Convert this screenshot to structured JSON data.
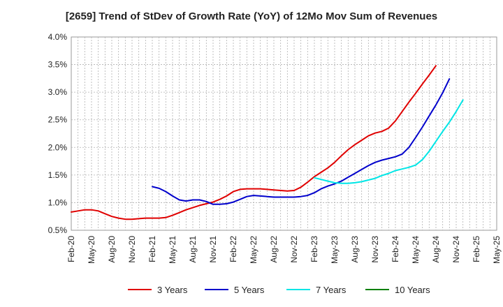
{
  "chart_data": {
    "type": "line",
    "title": "[2659]  Trend of StDev of Growth Rate (YoY) of 12Mo Mov Sum of Revenues",
    "xlabel": "",
    "ylabel": "",
    "x_tick_labels": [
      "Feb-20",
      "May-20",
      "Aug-20",
      "Nov-20",
      "Feb-21",
      "May-21",
      "Aug-21",
      "Nov-21",
      "Feb-22",
      "May-22",
      "Aug-22",
      "Nov-22",
      "Feb-23",
      "May-23",
      "Aug-23",
      "Nov-23",
      "Feb-24",
      "May-24",
      "Aug-24",
      "Nov-24",
      "Feb-25",
      "May-25"
    ],
    "y_tick_labels": [
      "0.5%",
      "1.0%",
      "1.5%",
      "2.0%",
      "2.5%",
      "3.0%",
      "3.5%",
      "4.0%"
    ],
    "y_ticks": [
      0.5,
      1.0,
      1.5,
      2.0,
      2.5,
      3.0,
      3.5,
      4.0
    ],
    "ylim": [
      0.5,
      4.0
    ],
    "x_range_months": [
      0,
      63
    ],
    "grid": true,
    "legend_position": "bottom",
    "series": [
      {
        "name": "3 Years",
        "color": "#e00000",
        "start_month": 0,
        "values": [
          0.83,
          0.85,
          0.87,
          0.87,
          0.85,
          0.8,
          0.75,
          0.72,
          0.7,
          0.7,
          0.71,
          0.72,
          0.72,
          0.72,
          0.73,
          0.77,
          0.82,
          0.87,
          0.91,
          0.95,
          0.98,
          1.01,
          1.06,
          1.12,
          1.2,
          1.24,
          1.25,
          1.25,
          1.25,
          1.24,
          1.23,
          1.22,
          1.21,
          1.22,
          1.28,
          1.37,
          1.47,
          1.55,
          1.63,
          1.73,
          1.85,
          1.96,
          2.05,
          2.13,
          2.21,
          2.26,
          2.29,
          2.35,
          2.48,
          2.65,
          2.82,
          2.98,
          3.15,
          3.31,
          3.48
        ]
      },
      {
        "name": "5 Years",
        "color": "#0000cc",
        "start_month": 12,
        "values": [
          1.29,
          1.26,
          1.2,
          1.12,
          1.05,
          1.03,
          1.05,
          1.05,
          1.02,
          0.97,
          0.97,
          0.98,
          1.01,
          1.06,
          1.11,
          1.13,
          1.12,
          1.11,
          1.1,
          1.1,
          1.1,
          1.1,
          1.11,
          1.13,
          1.18,
          1.25,
          1.3,
          1.34,
          1.39,
          1.46,
          1.53,
          1.6,
          1.67,
          1.73,
          1.77,
          1.8,
          1.83,
          1.88,
          2.0,
          2.18,
          2.37,
          2.57,
          2.77,
          2.99,
          3.24
        ]
      },
      {
        "name": "7 Years",
        "color": "#00e6e6",
        "start_month": 36,
        "values": [
          1.45,
          1.42,
          1.39,
          1.36,
          1.35,
          1.35,
          1.36,
          1.38,
          1.41,
          1.44,
          1.49,
          1.53,
          1.58,
          1.61,
          1.64,
          1.68,
          1.78,
          1.93,
          2.11,
          2.29,
          2.46,
          2.65,
          2.86
        ]
      },
      {
        "name": "10 Years",
        "color": "#008000",
        "start_month": 0,
        "values": []
      }
    ]
  }
}
